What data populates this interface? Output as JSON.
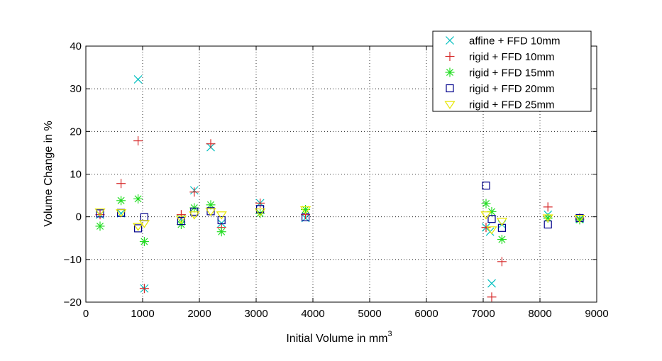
{
  "chart_data": {
    "type": "scatter",
    "title": "",
    "xlabel": "Initial Volume in mm",
    "xlabel_superscript": "3",
    "ylabel": "Volume Change in %",
    "xlim": [
      0,
      9000
    ],
    "ylim": [
      -20,
      40
    ],
    "xticks": [
      0,
      1000,
      2000,
      3000,
      4000,
      5000,
      6000,
      7000,
      8000,
      9000
    ],
    "yticks": [
      -20,
      -10,
      0,
      10,
      20,
      30,
      40
    ],
    "grid": true,
    "grid_style": "dotted",
    "legend_position": "top-right",
    "series": [
      {
        "name": "affine + FFD 10mm",
        "marker": "x",
        "color": "#00BFBF",
        "points": [
          [
            250,
            0.5
          ],
          [
            620,
            0.8
          ],
          [
            920,
            32.2
          ],
          [
            1030,
            -16.8
          ],
          [
            1680,
            -0.5
          ],
          [
            1910,
            6.2
          ],
          [
            2200,
            16.3
          ],
          [
            2390,
            -1.5
          ],
          [
            3070,
            3.2
          ],
          [
            3870,
            -0.3
          ],
          [
            7050,
            -2.5
          ],
          [
            7120,
            -3.5
          ],
          [
            7150,
            -15.6
          ],
          [
            7330,
            -1.8
          ],
          [
            8140,
            0.5
          ],
          [
            8700,
            -0.5
          ]
        ]
      },
      {
        "name": "rigid + FFD 10mm",
        "marker": "plus",
        "color": "#D62728",
        "points": [
          [
            250,
            0.5
          ],
          [
            620,
            7.8
          ],
          [
            920,
            17.8
          ],
          [
            1030,
            -16.8
          ],
          [
            1680,
            0.5
          ],
          [
            1910,
            5.8
          ],
          [
            2200,
            17.1
          ],
          [
            2390,
            -2.5
          ],
          [
            3070,
            3.2
          ],
          [
            3870,
            0.5
          ],
          [
            7050,
            -2.5
          ],
          [
            7150,
            -18.8
          ],
          [
            7330,
            -10.5
          ],
          [
            8140,
            2.3
          ],
          [
            8700,
            -0.3
          ]
        ]
      },
      {
        "name": "rigid + FFD 15mm",
        "marker": "asterisk",
        "color": "#22DD22",
        "points": [
          [
            250,
            -2.2
          ],
          [
            620,
            3.8
          ],
          [
            920,
            4.2
          ],
          [
            1030,
            -5.8
          ],
          [
            1680,
            -1.8
          ],
          [
            1910,
            2.1
          ],
          [
            2200,
            2.8
          ],
          [
            2390,
            -3.5
          ],
          [
            3070,
            0.8
          ],
          [
            3870,
            1.7
          ],
          [
            7050,
            3.1
          ],
          [
            7150,
            1.2
          ],
          [
            7330,
            -5.3
          ],
          [
            8140,
            -0.3
          ],
          [
            8700,
            -0.7
          ]
        ]
      },
      {
        "name": "rigid + FFD 20mm",
        "marker": "square",
        "color": "#00008B",
        "points": [
          [
            250,
            0.8
          ],
          [
            620,
            0.9
          ],
          [
            920,
            -2.7
          ],
          [
            1030,
            -0.1
          ],
          [
            1680,
            -1.0
          ],
          [
            1910,
            1.2
          ],
          [
            2200,
            1.3
          ],
          [
            2390,
            -0.8
          ],
          [
            3070,
            1.8
          ],
          [
            3870,
            -0.1
          ],
          [
            7050,
            7.3
          ],
          [
            7150,
            -0.5
          ],
          [
            7330,
            -2.6
          ],
          [
            8140,
            -1.8
          ],
          [
            8700,
            -0.3
          ]
        ]
      },
      {
        "name": "rigid + FFD 25mm",
        "marker": "triangle-down",
        "color": "#E6E600",
        "points": [
          [
            250,
            1.2
          ],
          [
            620,
            1.0
          ],
          [
            920,
            -2.2
          ],
          [
            1030,
            -1.5
          ],
          [
            1680,
            -0.5
          ],
          [
            1910,
            0.5
          ],
          [
            2200,
            1.3
          ],
          [
            2390,
            0.5
          ],
          [
            3070,
            1.2
          ],
          [
            3870,
            1.7
          ],
          [
            7050,
            0.5
          ],
          [
            7150,
            -3.0
          ],
          [
            7330,
            -1.0
          ],
          [
            8140,
            -0.2
          ],
          [
            8700,
            -0.3
          ]
        ]
      }
    ]
  }
}
